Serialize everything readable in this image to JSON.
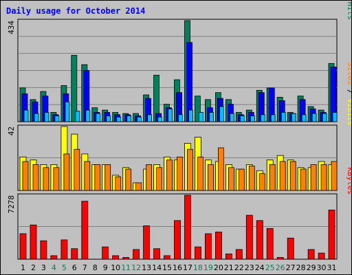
{
  "chart_data": {
    "type": "bar",
    "title": "Daily usage for October 2014",
    "categories": [
      "1",
      "2",
      "3",
      "4",
      "5",
      "6",
      "7",
      "8",
      "9",
      "10",
      "11",
      "12",
      "13",
      "14",
      "15",
      "16",
      "17",
      "18",
      "19",
      "20",
      "21",
      "22",
      "23",
      "24",
      "25",
      "26",
      "27",
      "28",
      "29",
      "30",
      "31"
    ],
    "weekend_days": [
      "4",
      "5",
      "11",
      "12",
      "18",
      "19",
      "25",
      "26"
    ],
    "colors": {
      "background": "#C0C0C0",
      "hits": "#00805C",
      "files": "#0000FF",
      "pages": "#00C0FF",
      "visits": "#FFFF00",
      "sites": "#FF8000",
      "kbytes": "#FF0000",
      "title": "#0000FF",
      "weekend_label": "#00805C"
    },
    "panels": [
      {
        "name": "hits-panel",
        "max_label": "434",
        "max": 434,
        "right_label": [
          {
            "text": "Pages",
            "color": "#00C0FF"
          },
          {
            "text": " / ",
            "color": "#000000"
          },
          {
            "text": "Files",
            "color": "#0000FF"
          },
          {
            "text": " / ",
            "color": "#000000"
          },
          {
            "text": "Hits",
            "color": "#00805C"
          }
        ],
        "series": [
          {
            "name": "Hits",
            "values": [
              145,
              95,
              130,
              40,
              155,
              285,
              245,
              60,
              50,
              40,
              35,
              35,
              115,
              200,
              75,
              180,
              434,
              110,
              95,
              125,
              95,
              40,
              50,
              135,
              145,
              105,
              40,
              110,
              65,
              50,
              250
            ]
          },
          {
            "name": "Files",
            "values": [
              120,
              85,
              110,
              30,
              120,
              0,
              220,
              40,
              40,
              30,
              30,
              25,
              100,
              35,
              60,
              125,
              340,
              0,
              60,
              100,
              75,
              30,
              40,
              125,
              145,
              90,
              35,
              95,
              55,
              40,
              235
            ]
          },
          {
            "name": "Pages",
            "values": [
              50,
              35,
              40,
              25,
              85,
              45,
              50,
              35,
              25,
              20,
              25,
              20,
              30,
              20,
              55,
              30,
              50,
              40,
              40,
              65,
              35,
              25,
              25,
              30,
              30,
              40,
              35,
              30,
              35,
              35,
              40
            ]
          }
        ]
      },
      {
        "name": "visits-panel",
        "max_label": "42",
        "max": 42,
        "right_label": [
          {
            "text": "Sites",
            "color": "#FF8000"
          },
          {
            "text": " / ",
            "color": "#000000"
          },
          {
            "text": "Visits",
            "color": "#FFFF00"
          }
        ],
        "series": [
          {
            "name": "Visits",
            "values": [
              22,
              20,
              17,
              17,
              42,
              37,
              24,
              17,
              17,
              10,
              15,
              5,
              14,
              17,
              22,
              20,
              31,
              35,
              20,
              19,
              17,
              14,
              17,
              13,
              20,
              23,
              20,
              15,
              15,
              19,
              17
            ]
          },
          {
            "name": "Sites",
            "values": [
              19,
              17,
              15,
              15,
              24,
              27,
              19,
              17,
              17,
              9,
              14,
              5,
              17,
              15,
              20,
              22,
              27,
              22,
              17,
              28,
              15,
              14,
              16,
              11,
              17,
              19,
              19,
              14,
              17,
              17,
              19
            ]
          }
        ]
      },
      {
        "name": "kbytes-panel",
        "max_label": "7278",
        "max": 7278,
        "right_label": [
          {
            "text": "KBytes",
            "color": "#FF0000"
          }
        ],
        "series": [
          {
            "name": "KBytes",
            "values": [
              2900,
              3900,
              2100,
              400,
              2200,
              1200,
              6600,
              0,
              1400,
              400,
              200,
              1100,
              3800,
              1200,
              400,
              4400,
              7278,
              1400,
              2900,
              3100,
              600,
              1100,
              5000,
              4400,
              3500,
              200,
              2400,
              0,
              1100,
              700,
              5600
            ]
          }
        ]
      }
    ]
  }
}
